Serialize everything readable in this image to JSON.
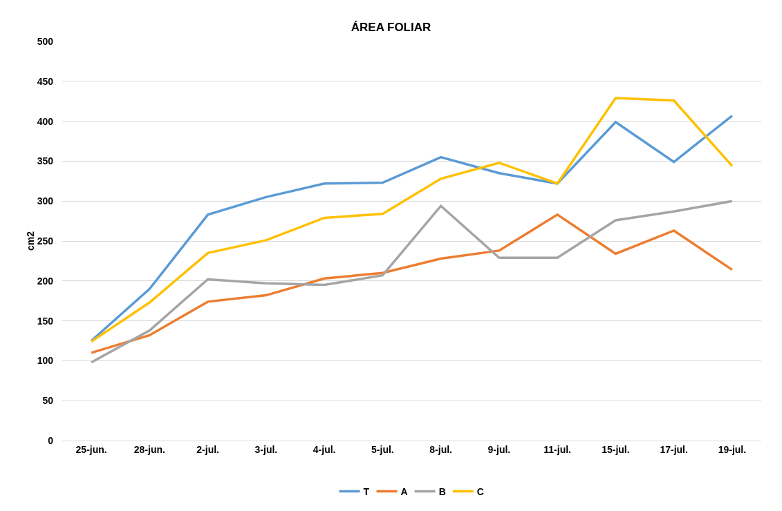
{
  "chart_data": {
    "type": "line",
    "title": "ÁREA FOLIAR",
    "ylabel": "cm2",
    "categories": [
      "25-jun.",
      "28-jun.",
      "2-jul.",
      "3-jul.",
      "4-jul.",
      "5-jul.",
      "8-jul.",
      "9-jul.",
      "11-jul.",
      "15-jul.",
      "17-jul.",
      "19-jul."
    ],
    "series": [
      {
        "name": "T",
        "color": "#5b9bd5",
        "values": [
          125,
          190,
          283,
          305,
          322,
          323,
          355,
          335,
          322,
          399,
          349,
          407
        ]
      },
      {
        "name": "A",
        "color": "#ed7d31",
        "values": [
          110,
          132,
          174,
          182,
          203,
          210,
          228,
          238,
          283,
          234,
          263,
          214
        ]
      },
      {
        "name": "B",
        "color": "#a5a5a5",
        "values": [
          98,
          138,
          202,
          197,
          195,
          207,
          294,
          229,
          229,
          276,
          287,
          300
        ]
      },
      {
        "name": "C",
        "color": "#ffc000",
        "values": [
          124,
          173,
          235,
          251,
          279,
          284,
          328,
          348,
          322,
          429,
          426,
          344
        ]
      }
    ],
    "ylim": [
      0,
      500
    ],
    "yticks": [
      0,
      50,
      100,
      150,
      200,
      250,
      300,
      350,
      400,
      450,
      500
    ],
    "grid": "y",
    "legend": "bottom",
    "marker": "none",
    "line_style": "solid"
  }
}
